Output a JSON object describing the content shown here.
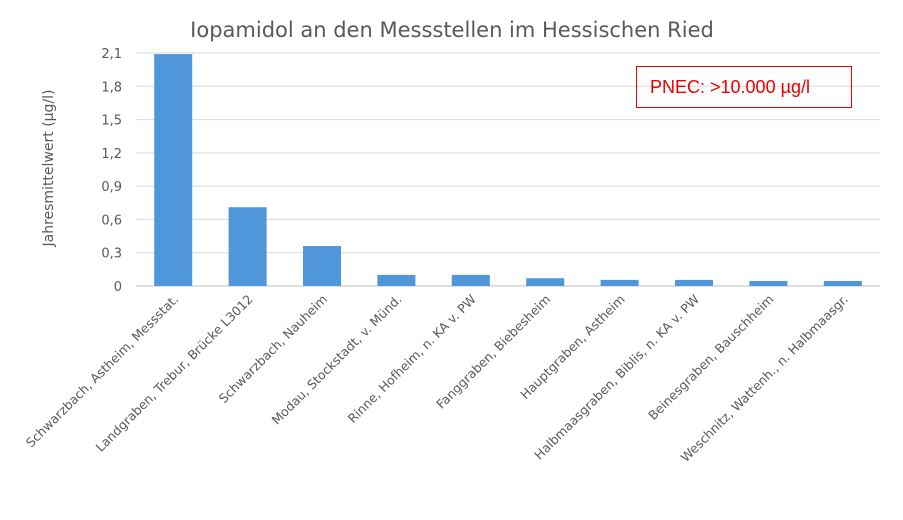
{
  "chart_data": {
    "type": "bar",
    "title": "Iopamidol an den Messstellen im Hessischen Ried",
    "xlabel": "",
    "ylabel": "Jahresmittelwert (µg/l)",
    "ylim": [
      0,
      2.1
    ],
    "yticks": [
      "0",
      "0,3",
      "0,6",
      "0,9",
      "1,2",
      "1,5",
      "1,8",
      "2,1"
    ],
    "grid": true,
    "categories": [
      "Schwarzbach, Astheim, Messstat.",
      "Landgraben, Trebur, Brücke L3012",
      "Schwarzbach, Nauheim",
      "Modau, Stockstadt, v. Münd.",
      "Rinne, Hofheim, n. KA v. PW",
      "Fanggraben, Biebesheim",
      "Hauptgraben, Astheim",
      "Halbmaasgraben, Biblis, n. KA v. PW",
      "Beinesgraben, Bauschheim",
      "Weschnitz, Wattenh., n. Halbmaasgr."
    ],
    "values": [
      2.09,
      0.71,
      0.36,
      0.1,
      0.1,
      0.07,
      0.055,
      0.055,
      0.045,
      0.045
    ],
    "bar_color": "#5096DB",
    "annotation": "PNEC: >10.000 µg/l",
    "annotation_color": "#FF0000"
  }
}
